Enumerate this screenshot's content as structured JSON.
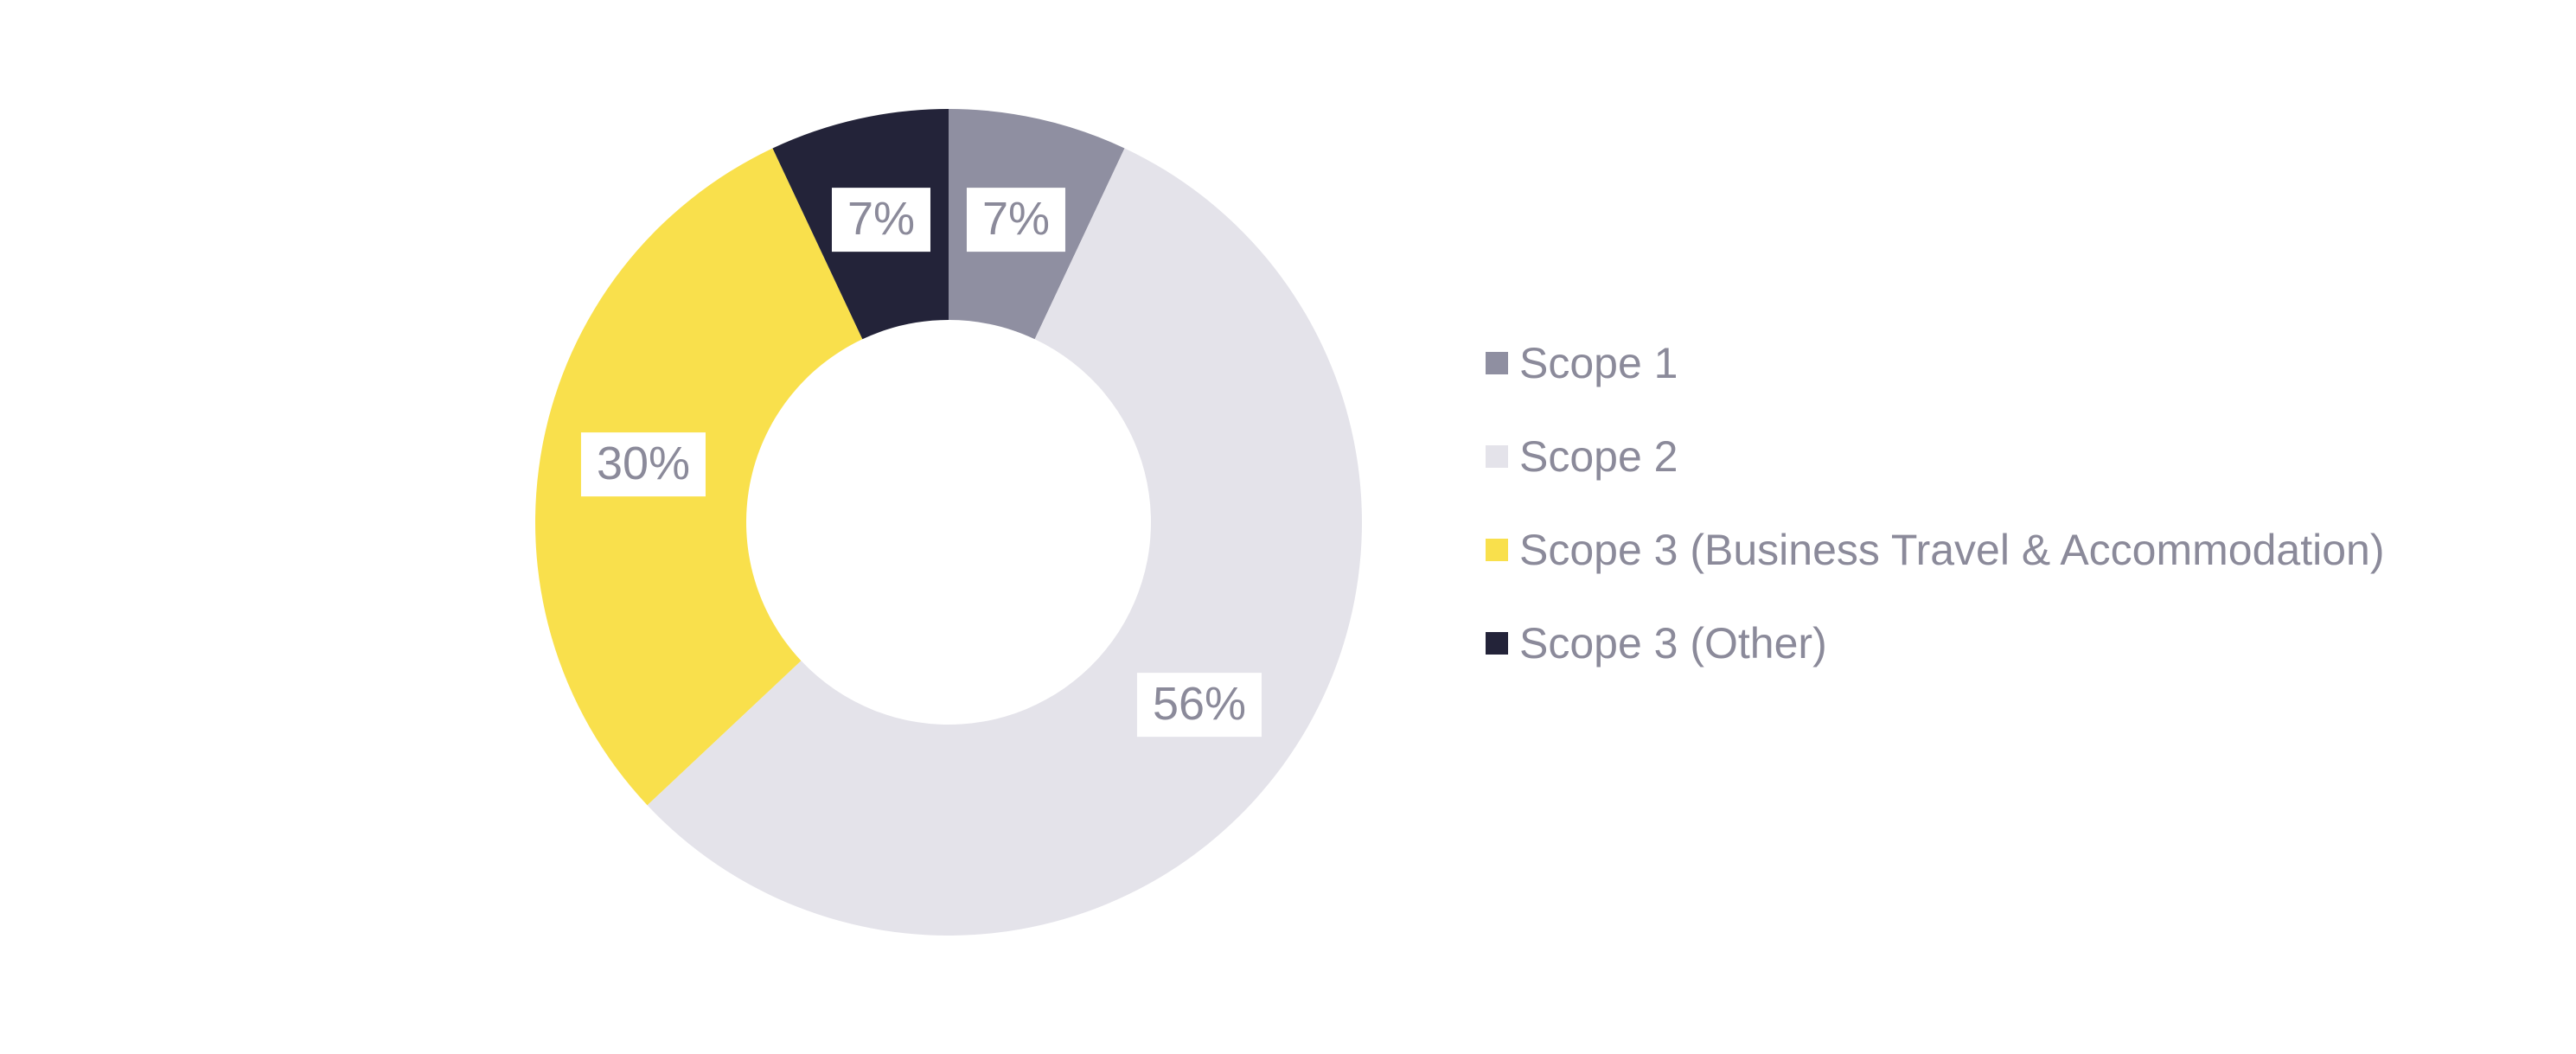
{
  "page": {
    "background": "#ffffff"
  },
  "chart_data": {
    "type": "pie",
    "subtype": "donut",
    "title": "",
    "start_angle_deg": 0,
    "direction": "clockwise",
    "inner_radius_ratio": 0.49,
    "grid": false,
    "legend_position": "right",
    "label_text_color": "#8B8A9A",
    "label_background": "#FFFFFF",
    "slices": [
      {
        "label": "Scope 1",
        "value": 7,
        "percent_label": "7%",
        "color": "#8F8FA1"
      },
      {
        "label": "Scope 2",
        "value": 56,
        "percent_label": "56%",
        "color": "#E4E3EA"
      },
      {
        "label": "Scope 3 (Business Travel & Accommodation)",
        "value": 30,
        "percent_label": "30%",
        "color": "#F9E04C"
      },
      {
        "label": "Scope 3 (Other)",
        "value": 7,
        "percent_label": "7%",
        "color": "#232339"
      }
    ]
  }
}
